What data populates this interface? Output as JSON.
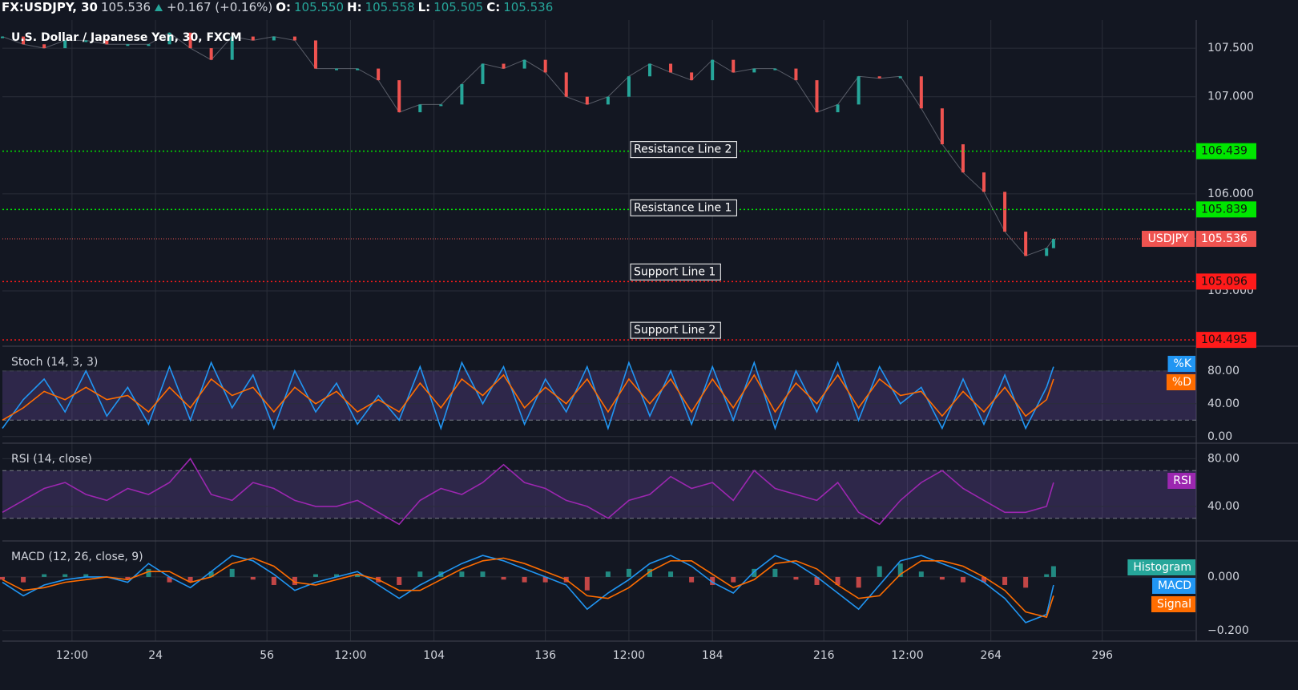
{
  "header": {
    "symbol": "FX:USDJPY, 30",
    "last": "105.536",
    "change": "+0.167 (+0.16%)",
    "ohlc": [
      {
        "key": "O:",
        "value": "105.550"
      },
      {
        "key": "H:",
        "value": "105.558"
      },
      {
        "key": "L:",
        "value": "105.505"
      },
      {
        "key": "C:",
        "value": "105.536"
      }
    ]
  },
  "chart_data": [
    {
      "type": "line",
      "title": "U.S. Dollar / Japanese Yen, 30, FXCM",
      "x": [
        -20,
        -14,
        -8,
        -2,
        4,
        10,
        16,
        22,
        28,
        34,
        40,
        46,
        52,
        58,
        64,
        70,
        76,
        82,
        88,
        94,
        100,
        106,
        112,
        118,
        124,
        130,
        136,
        142,
        148,
        154,
        160,
        166,
        172,
        178,
        184,
        190,
        196,
        202,
        208,
        214,
        220,
        226,
        232,
        238,
        244,
        250,
        256,
        262,
        268,
        274,
        280,
        282
      ],
      "xlim": [
        -20,
        323
      ],
      "ylim": [
        104.43,
        107.79
      ],
      "yticks": [
        {
          "value": 105,
          "label": "105.000"
        },
        {
          "value": 106,
          "label": "106.000"
        },
        {
          "value": 107,
          "label": "107.000"
        },
        {
          "value": 107.5,
          "label": "107.500"
        }
      ],
      "grid": true,
      "up_color": "#26a69a",
      "down_color": "#ef5350",
      "series": [
        {
          "name": "USDJPY",
          "color": "#ef5350",
          "values": [
            107.62,
            107.54,
            107.5,
            107.58,
            107.58,
            107.54,
            107.54,
            107.54,
            107.66,
            107.5,
            107.38,
            107.62,
            107.58,
            107.62,
            107.58,
            107.29,
            107.29,
            107.29,
            107.17,
            106.84,
            106.92,
            106.92,
            107.13,
            107.34,
            107.29,
            107.38,
            107.25,
            107.0,
            106.92,
            107.0,
            107.21,
            107.34,
            107.25,
            107.17,
            107.38,
            107.25,
            107.29,
            107.29,
            107.17,
            106.84,
            106.92,
            107.21,
            107.19,
            107.21,
            106.88,
            106.51,
            106.22,
            106.02,
            105.61,
            105.36,
            105.44,
            105.536
          ]
        }
      ],
      "levels": [
        {
          "label": "Resistance Line 2",
          "value": 106.439,
          "color": "#00e600"
        },
        {
          "label": "Resistance Line 1",
          "value": 105.839,
          "color": "#00e600"
        },
        {
          "label": "Support Line 1",
          "value": 105.096,
          "color": "#ff1a1a"
        },
        {
          "label": "Support Line 2",
          "value": 104.495,
          "color": "#ff1a1a"
        }
      ]
    },
    {
      "type": "line",
      "title": "Stoch (14, 3, 3)",
      "ylim": [
        -8,
        110
      ],
      "yticks": [
        {
          "value": 0,
          "label": "0.00"
        },
        {
          "value": 40,
          "label": "40.00"
        },
        {
          "value": 80,
          "label": "80.00"
        }
      ],
      "bands": [
        20,
        80
      ],
      "band_color": "#7e57c2",
      "series": [
        {
          "name": "%K",
          "color": "#2196f3",
          "values": [
            10,
            45,
            70,
            30,
            80,
            25,
            60,
            15,
            85,
            20,
            90,
            35,
            75,
            10,
            80,
            30,
            65,
            15,
            50,
            20,
            85,
            10,
            90,
            40,
            85,
            15,
            70,
            30,
            85,
            10,
            90,
            25,
            80,
            15,
            85,
            20,
            90,
            10,
            80,
            30,
            90,
            20,
            85,
            40,
            60,
            10,
            70,
            15,
            75,
            10,
            60,
            85
          ]
        },
        {
          "name": "%D",
          "color": "#ff6d00",
          "values": [
            20,
            35,
            55,
            45,
            60,
            45,
            50,
            30,
            60,
            35,
            70,
            50,
            60,
            30,
            60,
            40,
            55,
            30,
            45,
            30,
            65,
            35,
            70,
            50,
            75,
            35,
            60,
            40,
            70,
            30,
            70,
            40,
            70,
            30,
            70,
            35,
            75,
            30,
            65,
            40,
            75,
            35,
            70,
            50,
            55,
            25,
            55,
            30,
            60,
            25,
            45,
            70
          ]
        }
      ]
    },
    {
      "type": "line",
      "title": "RSI (14, close)",
      "ylim": [
        11,
        93
      ],
      "yticks": [
        {
          "value": 40,
          "label": "40.00"
        },
        {
          "value": 80,
          "label": "80.00"
        }
      ],
      "bands": [
        30,
        70
      ],
      "band_color": "#7e57c2",
      "series": [
        {
          "name": "RSI",
          "color": "#9c27b0",
          "values": [
            35,
            45,
            55,
            60,
            50,
            45,
            55,
            50,
            60,
            80,
            50,
            45,
            60,
            55,
            45,
            40,
            40,
            45,
            35,
            25,
            45,
            55,
            50,
            60,
            75,
            60,
            55,
            45,
            40,
            30,
            45,
            50,
            65,
            55,
            60,
            45,
            70,
            55,
            50,
            45,
            60,
            35,
            25,
            45,
            60,
            70,
            55,
            45,
            35,
            35,
            40,
            60
          ]
        }
      ]
    },
    {
      "type": "line",
      "title": "MACD (12, 26, close, 9)",
      "ylim": [
        -0.239,
        0.134
      ],
      "yticks": [
        {
          "value": -0.2,
          "label": "−0.200"
        },
        {
          "value": 0,
          "label": "0.000"
        }
      ],
      "xticks": [
        {
          "value": 0,
          "label": "12:00"
        },
        24,
        56,
        {
          "value": 80,
          "label": "12:00"
        },
        104,
        136,
        {
          "value": 160,
          "label": "12:00"
        },
        184,
        216,
        {
          "value": 240,
          "label": "12:00"
        },
        264,
        296
      ],
      "series": [
        {
          "name": "Histogram",
          "color": "#26a69a",
          "negative_color": "#ef5350",
          "style": "histogram",
          "values": [
            -0.01,
            -0.02,
            0.01,
            0.01,
            0.01,
            0,
            -0.01,
            0.03,
            -0.02,
            -0.02,
            0.02,
            0.03,
            -0.01,
            -0.03,
            -0.03,
            0.01,
            0.01,
            0.01,
            -0.02,
            -0.03,
            0.02,
            0.02,
            0.02,
            0.02,
            -0.01,
            -0.02,
            -0.02,
            -0.02,
            -0.05,
            0.02,
            0.03,
            0.03,
            0.02,
            -0.02,
            -0.03,
            -0.02,
            0.03,
            0.03,
            -0.01,
            -0.03,
            -0.03,
            -0.04,
            0.04,
            0.05,
            0.02,
            -0.01,
            -0.02,
            -0.02,
            -0.03,
            -0.04,
            0.01,
            0.04
          ]
        },
        {
          "name": "MACD",
          "color": "#2196f3",
          "values": [
            -0.02,
            -0.07,
            -0.03,
            -0.01,
            0,
            0,
            -0.02,
            0.05,
            0,
            -0.04,
            0.02,
            0.08,
            0.06,
            0.01,
            -0.05,
            -0.02,
            0,
            0.02,
            -0.03,
            -0.08,
            -0.03,
            0.01,
            0.05,
            0.08,
            0.06,
            0.03,
            0,
            -0.03,
            -0.12,
            -0.06,
            -0.01,
            0.05,
            0.08,
            0.04,
            -0.02,
            -0.06,
            0.02,
            0.08,
            0.05,
            0,
            -0.06,
            -0.12,
            -0.03,
            0.06,
            0.08,
            0.05,
            0.02,
            -0.02,
            -0.08,
            -0.17,
            -0.14,
            -0.03
          ]
        },
        {
          "name": "Signal",
          "color": "#ff6d00",
          "values": [
            -0.01,
            -0.05,
            -0.04,
            -0.02,
            -0.01,
            0,
            -0.01,
            0.02,
            0.02,
            -0.02,
            0,
            0.05,
            0.07,
            0.04,
            -0.02,
            -0.03,
            -0.01,
            0.01,
            -0.01,
            -0.05,
            -0.05,
            -0.01,
            0.03,
            0.06,
            0.07,
            0.05,
            0.02,
            -0.01,
            -0.07,
            -0.08,
            -0.04,
            0.02,
            0.06,
            0.06,
            0.01,
            -0.04,
            -0.01,
            0.05,
            0.06,
            0.03,
            -0.03,
            -0.08,
            -0.07,
            0.01,
            0.06,
            0.06,
            0.04,
            0,
            -0.05,
            -0.13,
            -0.15,
            -0.07
          ]
        }
      ]
    }
  ]
}
